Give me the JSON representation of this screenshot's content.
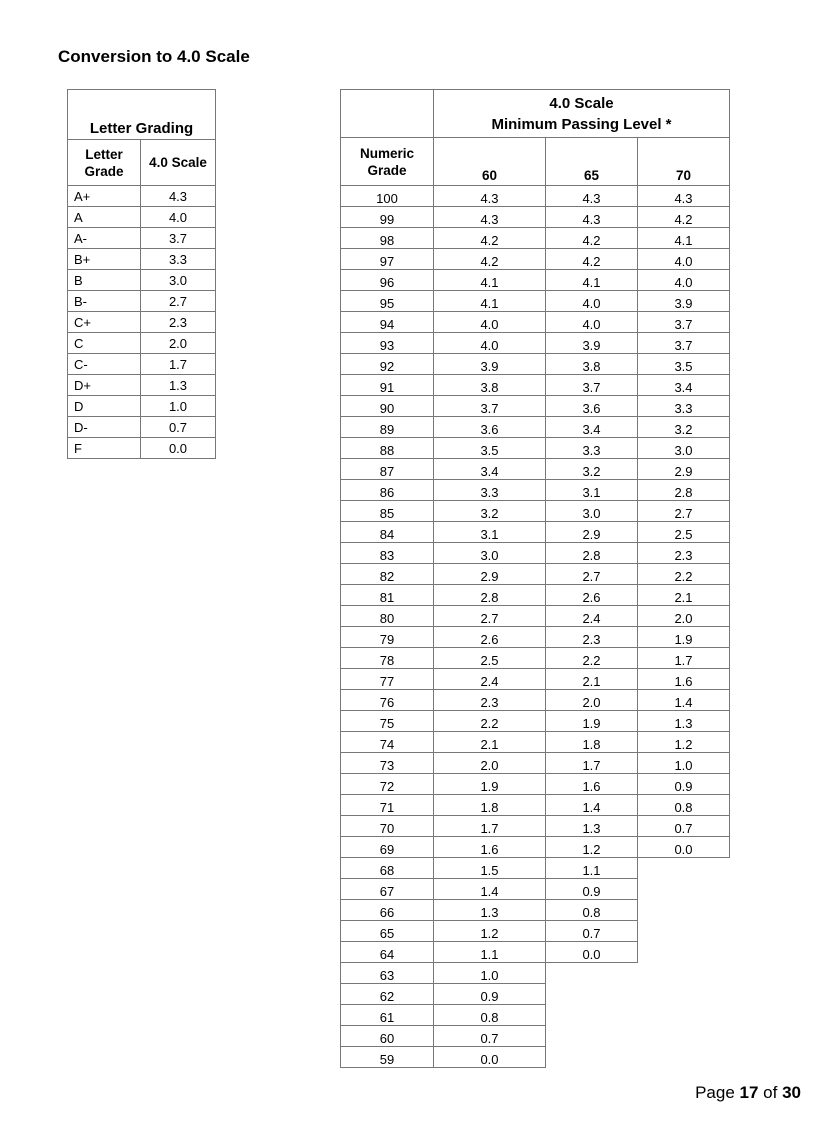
{
  "title": "Conversion to 4.0 Scale",
  "letter_table": {
    "caption": "Letter Grading",
    "col_letter": "Letter Grade",
    "col_scale": "4.0 Scale",
    "rows": [
      [
        "A+",
        "4.3"
      ],
      [
        "A",
        "4.0"
      ],
      [
        "A-",
        "3.7"
      ],
      [
        "B+",
        "3.3"
      ],
      [
        "B",
        "3.0"
      ],
      [
        "B-",
        "2.7"
      ],
      [
        "C+",
        "2.3"
      ],
      [
        "C",
        "2.0"
      ],
      [
        "C-",
        "1.7"
      ],
      [
        "D+",
        "1.3"
      ],
      [
        "D",
        "1.0"
      ],
      [
        "D-",
        "0.7"
      ],
      [
        "F",
        "0.0"
      ]
    ]
  },
  "numeric_table": {
    "caption_line1": "4.0 Scale",
    "caption_line2": "Minimum Passing Level *",
    "col_numeric": "Numeric Grade",
    "levels": [
      "60",
      "65",
      "70"
    ],
    "rows": [
      [
        "100",
        "4.3",
        "4.3",
        "4.3"
      ],
      [
        "99",
        "4.3",
        "4.3",
        "4.2"
      ],
      [
        "98",
        "4.2",
        "4.2",
        "4.1"
      ],
      [
        "97",
        "4.2",
        "4.2",
        "4.0"
      ],
      [
        "96",
        "4.1",
        "4.1",
        "4.0"
      ],
      [
        "95",
        "4.1",
        "4.0",
        "3.9"
      ],
      [
        "94",
        "4.0",
        "4.0",
        "3.7"
      ],
      [
        "93",
        "4.0",
        "3.9",
        "3.7"
      ],
      [
        "92",
        "3.9",
        "3.8",
        "3.5"
      ],
      [
        "91",
        "3.8",
        "3.7",
        "3.4"
      ],
      [
        "90",
        "3.7",
        "3.6",
        "3.3"
      ],
      [
        "89",
        "3.6",
        "3.4",
        "3.2"
      ],
      [
        "88",
        "3.5",
        "3.3",
        "3.0"
      ],
      [
        "87",
        "3.4",
        "3.2",
        "2.9"
      ],
      [
        "86",
        "3.3",
        "3.1",
        "2.8"
      ],
      [
        "85",
        "3.2",
        "3.0",
        "2.7"
      ],
      [
        "84",
        "3.1",
        "2.9",
        "2.5"
      ],
      [
        "83",
        "3.0",
        "2.8",
        "2.3"
      ],
      [
        "82",
        "2.9",
        "2.7",
        "2.2"
      ],
      [
        "81",
        "2.8",
        "2.6",
        "2.1"
      ],
      [
        "80",
        "2.7",
        "2.4",
        "2.0"
      ],
      [
        "79",
        "2.6",
        "2.3",
        "1.9"
      ],
      [
        "78",
        "2.5",
        "2.2",
        "1.7"
      ],
      [
        "77",
        "2.4",
        "2.1",
        "1.6"
      ],
      [
        "76",
        "2.3",
        "2.0",
        "1.4"
      ],
      [
        "75",
        "2.2",
        "1.9",
        "1.3"
      ],
      [
        "74",
        "2.1",
        "1.8",
        "1.2"
      ],
      [
        "73",
        "2.0",
        "1.7",
        "1.0"
      ],
      [
        "72",
        "1.9",
        "1.6",
        "0.9"
      ],
      [
        "71",
        "1.8",
        "1.4",
        "0.8"
      ],
      [
        "70",
        "1.7",
        "1.3",
        "0.7"
      ],
      [
        "69",
        "1.6",
        "1.2",
        "0.0"
      ],
      [
        "68",
        "1.5",
        "1.1",
        null
      ],
      [
        "67",
        "1.4",
        "0.9",
        null
      ],
      [
        "66",
        "1.3",
        "0.8",
        null
      ],
      [
        "65",
        "1.2",
        "0.7",
        null
      ],
      [
        "64",
        "1.1",
        "0.0",
        null
      ],
      [
        "63",
        "1.0",
        null,
        null
      ],
      [
        "62",
        "0.9",
        null,
        null
      ],
      [
        "61",
        "0.8",
        null,
        null
      ],
      [
        "60",
        "0.7",
        null,
        null
      ],
      [
        "59",
        "0.0",
        null,
        null
      ]
    ]
  },
  "footer": {
    "prefix": "Page ",
    "page": "17",
    "middle": " of ",
    "total": "30"
  }
}
